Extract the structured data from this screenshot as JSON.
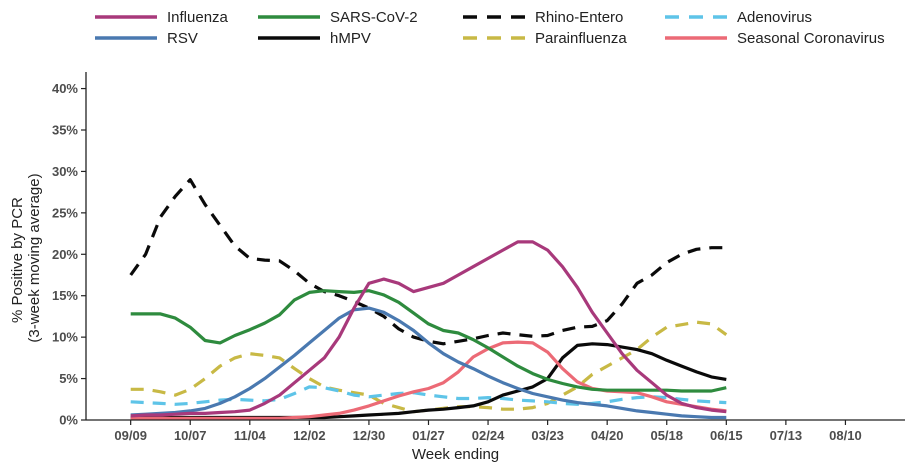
{
  "chart_data": {
    "type": "line",
    "title": "",
    "xlabel": "Week ending",
    "ylabel": [
      "% Positive by PCR",
      "(3-week moving average)"
    ],
    "x_ticks": [
      "09/09",
      "10/07",
      "11/04",
      "12/02",
      "12/30",
      "01/27",
      "02/24",
      "03/23",
      "04/20",
      "05/18",
      "06/15",
      "07/13",
      "08/10"
    ],
    "x_tick_week_index": [
      0,
      4,
      8,
      12,
      16,
      20,
      24,
      28,
      32,
      36,
      40,
      44,
      48
    ],
    "xlim": [
      -3,
      52
    ],
    "y_ticks": [
      "0%",
      "5%",
      "10%",
      "15%",
      "20%",
      "25%",
      "30%",
      "35%",
      "40%"
    ],
    "ylim": [
      0,
      42
    ],
    "grid": false,
    "legend_position": "top",
    "series": [
      {
        "name": "Influenza",
        "color": "#a8397b",
        "dash": "solid",
        "values": [
          0.5,
          0.6,
          0.6,
          0.7,
          0.8,
          0.8,
          0.9,
          1.0,
          1.2,
          2.0,
          3.0,
          4.5,
          6.0,
          7.5,
          10.0,
          13.5,
          16.5,
          17.0,
          16.5,
          15.5,
          16.0,
          16.5,
          17.5,
          18.5,
          19.5,
          20.5,
          21.5,
          21.5,
          20.5,
          18.5,
          16.0,
          13.0,
          10.5,
          8.0,
          6.0,
          4.5,
          3.0,
          2.0,
          1.5,
          1.2,
          1.0
        ]
      },
      {
        "name": "RSV",
        "color": "#4a79b0",
        "dash": "solid",
        "values": [
          0.6,
          0.7,
          0.8,
          0.9,
          1.1,
          1.4,
          2.0,
          2.8,
          3.8,
          5.0,
          6.4,
          7.8,
          9.3,
          10.8,
          12.3,
          13.3,
          13.5,
          13.0,
          12.0,
          10.8,
          9.3,
          8.0,
          7.0,
          6.2,
          5.3,
          4.5,
          3.8,
          3.2,
          2.8,
          2.4,
          2.1,
          1.9,
          1.7,
          1.4,
          1.1,
          0.9,
          0.7,
          0.5,
          0.4,
          0.3,
          0.3
        ]
      },
      {
        "name": "SARS-CoV-2",
        "color": "#2e8b3e",
        "dash": "solid",
        "values": [
          12.8,
          12.8,
          12.8,
          12.3,
          11.2,
          9.6,
          9.3,
          10.2,
          10.9,
          11.7,
          12.7,
          14.5,
          15.4,
          15.6,
          15.5,
          15.4,
          15.6,
          15.1,
          14.2,
          12.9,
          11.6,
          10.8,
          10.5,
          9.7,
          8.7,
          7.6,
          6.5,
          5.6,
          4.9,
          4.4,
          4.0,
          3.7,
          3.6,
          3.6,
          3.6,
          3.6,
          3.6,
          3.5,
          3.5,
          3.5,
          3.9
        ]
      },
      {
        "name": "hMPV",
        "color": "#0a0a0a",
        "dash": "solid",
        "values": [
          0.3,
          0.3,
          0.3,
          0.3,
          0.3,
          0.3,
          0.3,
          0.3,
          0.3,
          0.3,
          0.3,
          0.3,
          0.3,
          0.3,
          0.4,
          0.5,
          0.6,
          0.7,
          0.8,
          1.0,
          1.2,
          1.3,
          1.5,
          1.7,
          2.2,
          3.0,
          3.5,
          4.0,
          5.0,
          7.5,
          9.0,
          9.2,
          9.1,
          8.8,
          8.5,
          8.0,
          7.2,
          6.5,
          5.8,
          5.2,
          4.9
        ]
      },
      {
        "name": "Rhino-Entero",
        "color": "#0a0a0a",
        "dash": "dashed",
        "values": [
          17.5,
          20.0,
          24.5,
          27.0,
          29.0,
          26.0,
          23.5,
          21.0,
          19.5,
          19.3,
          19.2,
          18.0,
          16.5,
          15.5,
          15.0,
          14.3,
          13.5,
          12.5,
          11.0,
          10.0,
          9.5,
          9.2,
          9.5,
          9.8,
          10.2,
          10.5,
          10.3,
          10.1,
          10.2,
          10.8,
          11.2,
          11.3,
          12.0,
          14.0,
          16.5,
          17.5,
          19.0,
          20.0,
          20.6,
          20.8,
          20.8
        ]
      },
      {
        "name": "Parainfluenza",
        "color": "#c8b945",
        "dash": "dashed",
        "values": [
          3.7,
          3.7,
          3.4,
          3.0,
          3.7,
          5.0,
          6.5,
          7.5,
          8.0,
          7.8,
          7.5,
          6.2,
          5.0,
          4.0,
          3.6,
          3.3,
          3.0,
          2.0,
          1.5,
          1.0,
          1.2,
          1.4,
          1.6,
          1.6,
          1.5,
          1.3,
          1.3,
          1.5,
          2.0,
          3.0,
          4.0,
          5.5,
          6.5,
          7.5,
          8.5,
          10.0,
          11.2,
          11.5,
          11.8,
          11.6,
          10.3
        ]
      },
      {
        "name": "Adenovirus",
        "color": "#5ec4e8",
        "dash": "dashed",
        "values": [
          2.2,
          2.1,
          2.0,
          1.9,
          2.0,
          2.2,
          2.4,
          2.5,
          2.4,
          2.3,
          2.5,
          3.2,
          4.0,
          3.9,
          3.5,
          3.0,
          2.8,
          3.0,
          3.2,
          3.3,
          3.0,
          2.8,
          2.6,
          2.6,
          2.7,
          2.6,
          2.4,
          2.3,
          2.2,
          2.0,
          1.9,
          2.0,
          2.2,
          2.5,
          2.7,
          2.8,
          2.7,
          2.5,
          2.3,
          2.2,
          2.1
        ]
      },
      {
        "name": "Seasonal Coronavirus",
        "color": "#ec6a76",
        "dash": "solid",
        "values": [
          0.2,
          0.2,
          0.2,
          0.2,
          0.2,
          0.2,
          0.2,
          0.2,
          0.2,
          0.2,
          0.2,
          0.3,
          0.4,
          0.6,
          0.8,
          1.2,
          1.7,
          2.3,
          2.9,
          3.4,
          3.8,
          4.5,
          5.8,
          7.6,
          8.6,
          9.3,
          9.4,
          9.3,
          8.2,
          6.2,
          4.6,
          3.8,
          3.5,
          3.4,
          3.3,
          2.8,
          2.2,
          1.9,
          1.6,
          1.3,
          1.1
        ]
      }
    ]
  }
}
